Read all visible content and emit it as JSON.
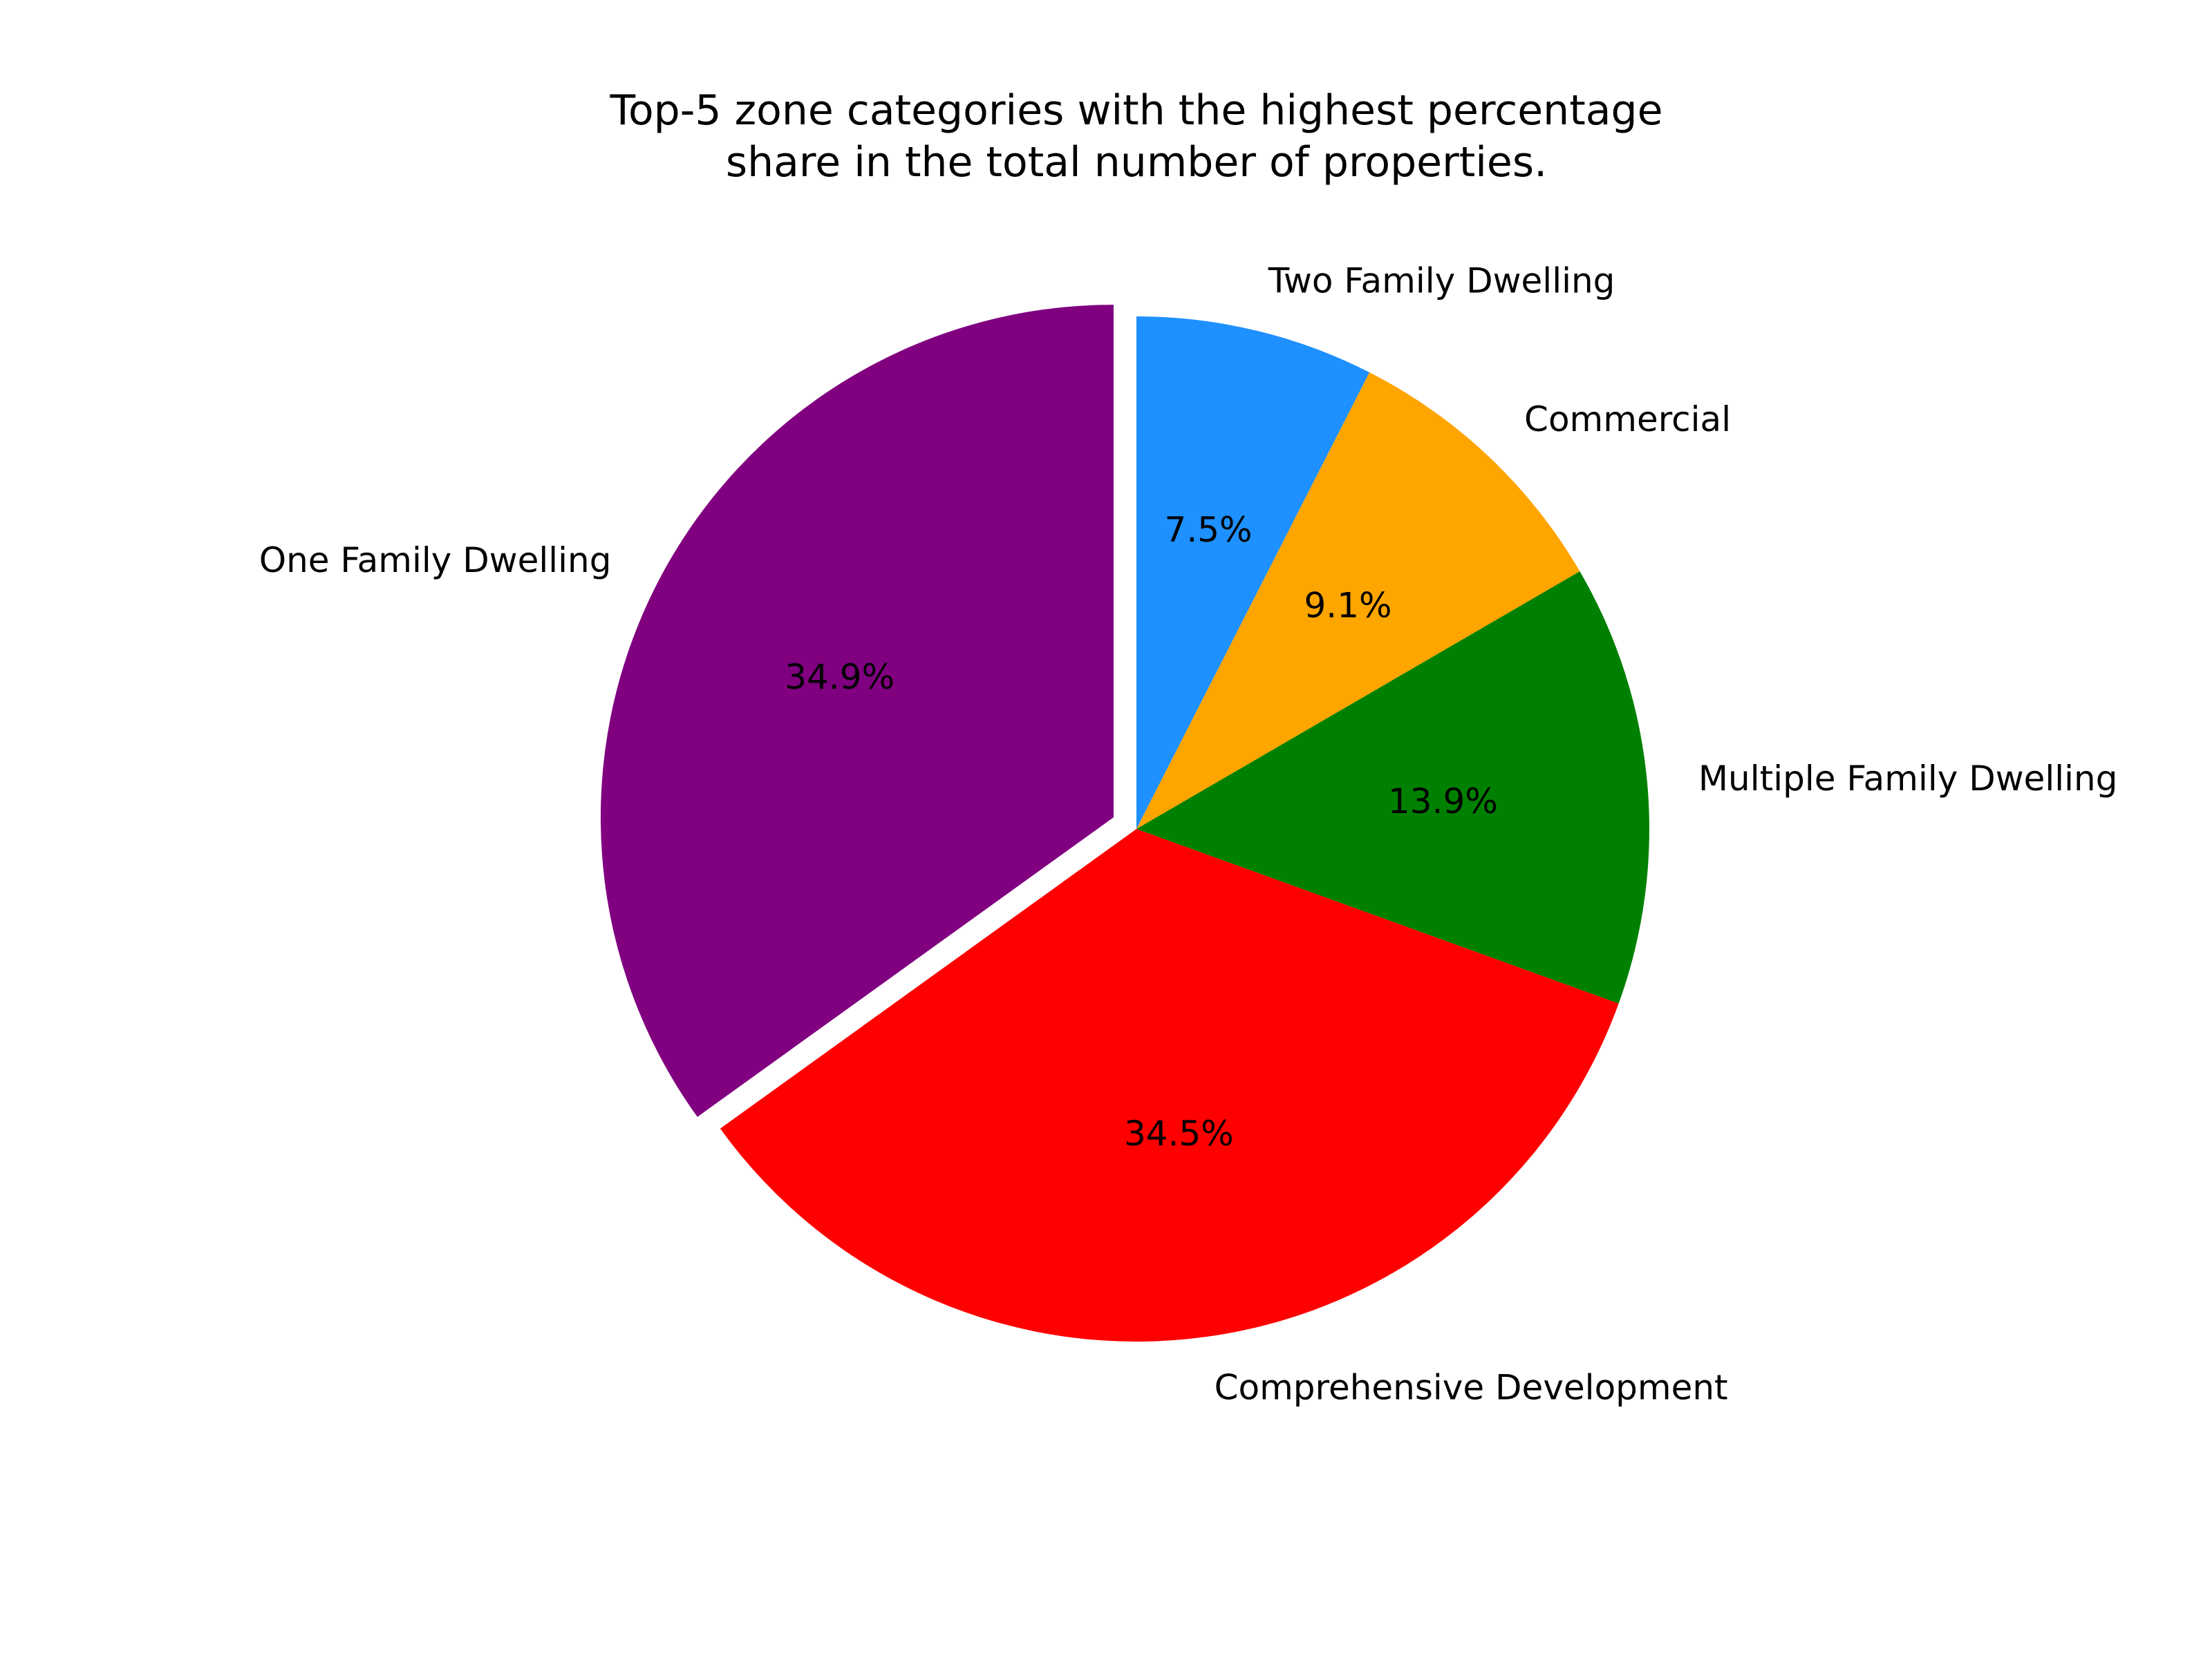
{
  "chart_data": {
    "type": "pie",
    "title_lines": [
      "Top-5 zone categories with the highest percentage",
      "share in the total number of properties."
    ],
    "start_angle_deg": 90,
    "direction": "clockwise",
    "slices": [
      {
        "label": "Two Family Dwelling",
        "value": 7.5,
        "pct_label": "7.5%",
        "color": "#1e90ff",
        "exploded": false
      },
      {
        "label": "Commercial",
        "value": 9.1,
        "pct_label": "9.1%",
        "color": "#ffa500",
        "exploded": false
      },
      {
        "label": "Multiple Family Dwelling",
        "value": 13.9,
        "pct_label": "13.9%",
        "color": "#008000",
        "exploded": false
      },
      {
        "label": "Comprehensive Development",
        "value": 34.5,
        "pct_label": "34.5%",
        "color": "#ff0000",
        "exploded": false
      },
      {
        "label": "One Family Dwelling",
        "value": 34.9,
        "pct_label": "34.9%",
        "color": "#800080",
        "exploded": true
      }
    ]
  }
}
